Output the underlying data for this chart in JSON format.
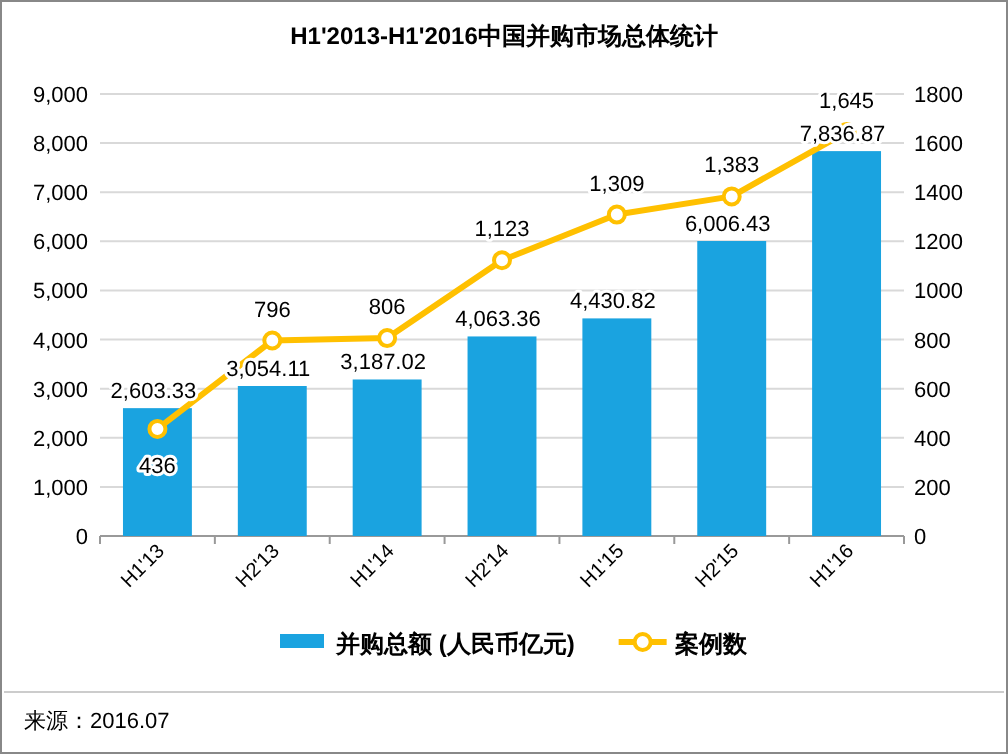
{
  "chart_data": {
    "type": "bar",
    "title": "H1'2013-H1'2016中国并购市场总体统计",
    "categories": [
      "H1'13",
      "H2'13",
      "H1'14",
      "H2'14",
      "H1'15",
      "H2'15",
      "H1'16"
    ],
    "series": [
      {
        "name": "并购总额 (人民币亿元)",
        "color": "#1aa3e0",
        "values": [
          2603.33,
          3054.11,
          3187.02,
          4063.36,
          4430.82,
          6006.43,
          7836.87
        ],
        "value_labels": [
          "2,603.33",
          "3,054.11",
          "3,187.02",
          "4,063.36",
          "4,430.82",
          "6,006.43",
          "7,836.87"
        ]
      },
      {
        "name": "案例数",
        "type": "line",
        "axis": "y2",
        "color": "#ffc000",
        "marker": "circle",
        "values": [
          436,
          796,
          806,
          1123,
          1309,
          1383,
          1645
        ],
        "value_labels": [
          "436",
          "796",
          "806",
          "1,123",
          "1,309",
          "1,383",
          "1,645"
        ]
      }
    ],
    "ylim": [
      0,
      9000
    ],
    "yticks": [
      {
        "value": 0,
        "label": "0"
      },
      {
        "value": 1000,
        "label": "1,000"
      },
      {
        "value": 2000,
        "label": "2,000"
      },
      {
        "value": 3000,
        "label": "3,000"
      },
      {
        "value": 4000,
        "label": "4,000"
      },
      {
        "value": 5000,
        "label": "5,000"
      },
      {
        "value": 6000,
        "label": "6,000"
      },
      {
        "value": 7000,
        "label": "7,000"
      },
      {
        "value": 8000,
        "label": "8,000"
      },
      {
        "value": 9000,
        "label": "9,000"
      }
    ],
    "y2lim": [
      0,
      1800
    ],
    "y2ticks": [
      0,
      200,
      400,
      600,
      800,
      1000,
      1200,
      1400,
      1600,
      1800
    ],
    "grid": "y",
    "legend": "bottom",
    "annotations": [
      "来源：2016.07"
    ]
  }
}
